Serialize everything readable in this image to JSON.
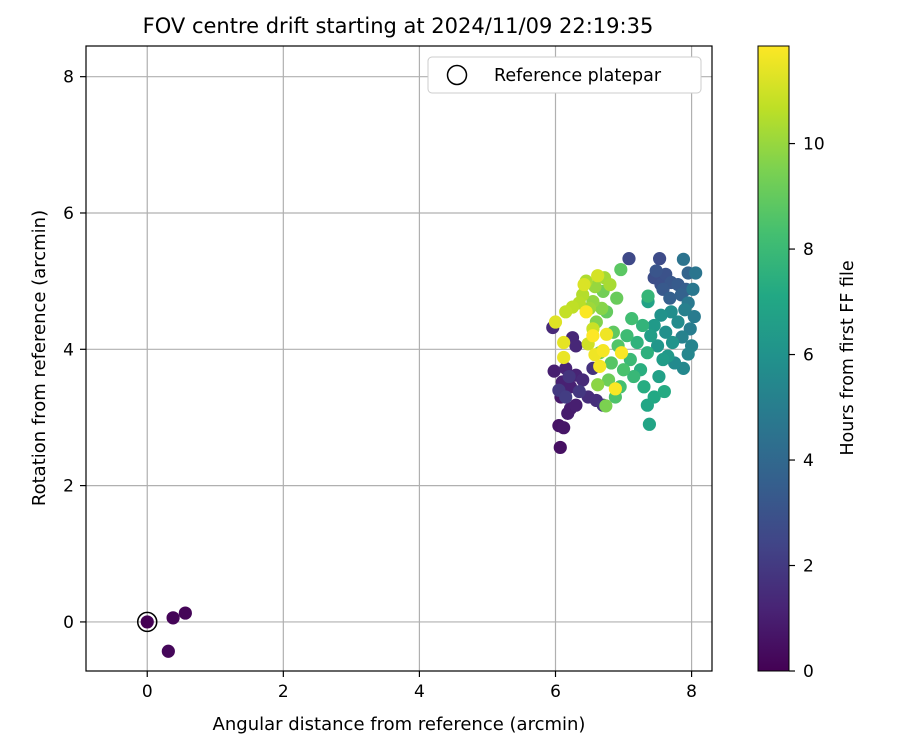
{
  "chart_data": {
    "type": "scatter",
    "title": "FOV centre drift starting at 2024/11/09 22:19:35",
    "xlabel": "Angular distance from reference (arcmin)",
    "ylabel": "Rotation from reference (arcmin)",
    "xlim": [
      -0.9,
      8.3
    ],
    "ylim": [
      -0.72,
      8.45
    ],
    "xticks": [
      0,
      2,
      4,
      6,
      8
    ],
    "yticks": [
      0,
      2,
      4,
      6,
      8
    ],
    "grid": true,
    "legend": {
      "placement": "top-right",
      "entries": [
        "Reference platepar"
      ]
    },
    "reference_point": {
      "x": 0.0,
      "y": 0.0,
      "label": "Reference platepar"
    },
    "colorbar": {
      "label": "Hours from first FF file",
      "colormap": "viridis",
      "range": [
        0,
        11.85
      ],
      "ticks": [
        0,
        2,
        4,
        6,
        8,
        10
      ]
    },
    "points": [
      {
        "x": 0.0,
        "y": 0.0,
        "h": 0.0
      },
      {
        "x": 0.38,
        "y": 0.06,
        "h": 0.1
      },
      {
        "x": 0.56,
        "y": 0.13,
        "h": 0.15
      },
      {
        "x": 0.31,
        "y": -0.43,
        "h": 0.2
      },
      {
        "x": 6.07,
        "y": 2.56,
        "h": 0.5
      },
      {
        "x": 6.05,
        "y": 2.88,
        "h": 0.6
      },
      {
        "x": 6.12,
        "y": 2.85,
        "h": 0.7
      },
      {
        "x": 6.08,
        "y": 3.3,
        "h": 0.8
      },
      {
        "x": 6.18,
        "y": 3.06,
        "h": 0.9
      },
      {
        "x": 6.22,
        "y": 3.13,
        "h": 0.9
      },
      {
        "x": 6.3,
        "y": 3.18,
        "h": 1.0
      },
      {
        "x": 5.98,
        "y": 3.68,
        "h": 1.0
      },
      {
        "x": 6.1,
        "y": 3.52,
        "h": 1.1
      },
      {
        "x": 6.22,
        "y": 3.45,
        "h": 1.1
      },
      {
        "x": 6.3,
        "y": 3.62,
        "h": 1.2
      },
      {
        "x": 6.15,
        "y": 3.72,
        "h": 1.2
      },
      {
        "x": 6.25,
        "y": 4.17,
        "h": 1.3
      },
      {
        "x": 6.3,
        "y": 4.05,
        "h": 1.3
      },
      {
        "x": 5.96,
        "y": 4.32,
        "h": 1.4
      },
      {
        "x": 6.4,
        "y": 3.55,
        "h": 1.4
      },
      {
        "x": 6.48,
        "y": 3.3,
        "h": 1.5
      },
      {
        "x": 6.6,
        "y": 3.25,
        "h": 1.6
      },
      {
        "x": 6.7,
        "y": 3.18,
        "h": 1.7
      },
      {
        "x": 6.55,
        "y": 3.72,
        "h": 1.7
      },
      {
        "x": 6.2,
        "y": 3.6,
        "h": 1.8
      },
      {
        "x": 6.35,
        "y": 3.38,
        "h": 1.9
      },
      {
        "x": 6.05,
        "y": 3.4,
        "h": 2.0
      },
      {
        "x": 6.15,
        "y": 3.3,
        "h": 2.1
      },
      {
        "x": 7.08,
        "y": 5.33,
        "h": 2.6
      },
      {
        "x": 7.53,
        "y": 5.33,
        "h": 2.7
      },
      {
        "x": 7.45,
        "y": 5.05,
        "h": 2.8
      },
      {
        "x": 7.55,
        "y": 4.95,
        "h": 2.9
      },
      {
        "x": 7.62,
        "y": 5.1,
        "h": 3.0
      },
      {
        "x": 7.48,
        "y": 5.15,
        "h": 3.1
      },
      {
        "x": 7.7,
        "y": 4.98,
        "h": 3.2
      },
      {
        "x": 7.58,
        "y": 4.88,
        "h": 3.3
      },
      {
        "x": 7.8,
        "y": 4.95,
        "h": 3.4
      },
      {
        "x": 7.92,
        "y": 4.88,
        "h": 3.5
      },
      {
        "x": 7.68,
        "y": 4.75,
        "h": 3.6
      },
      {
        "x": 7.85,
        "y": 4.8,
        "h": 3.7
      },
      {
        "x": 7.95,
        "y": 5.12,
        "h": 3.8
      },
      {
        "x": 7.88,
        "y": 5.32,
        "h": 4.5
      },
      {
        "x": 8.06,
        "y": 5.12,
        "h": 4.6
      },
      {
        "x": 8.02,
        "y": 4.88,
        "h": 4.7
      },
      {
        "x": 7.95,
        "y": 4.68,
        "h": 4.8
      },
      {
        "x": 8.04,
        "y": 4.48,
        "h": 4.9
      },
      {
        "x": 7.98,
        "y": 4.3,
        "h": 5.0
      },
      {
        "x": 7.9,
        "y": 4.58,
        "h": 5.1
      },
      {
        "x": 7.86,
        "y": 4.18,
        "h": 5.2
      },
      {
        "x": 8.0,
        "y": 4.05,
        "h": 5.3
      },
      {
        "x": 7.95,
        "y": 3.93,
        "h": 5.4
      },
      {
        "x": 7.88,
        "y": 3.72,
        "h": 5.5
      },
      {
        "x": 7.75,
        "y": 3.8,
        "h": 5.6
      },
      {
        "x": 7.8,
        "y": 4.4,
        "h": 5.7
      },
      {
        "x": 7.7,
        "y": 4.55,
        "h": 5.8
      },
      {
        "x": 7.62,
        "y": 4.25,
        "h": 5.9
      },
      {
        "x": 7.55,
        "y": 4.5,
        "h": 6.0
      },
      {
        "x": 7.72,
        "y": 4.1,
        "h": 6.1
      },
      {
        "x": 7.5,
        "y": 4.05,
        "h": 6.2
      },
      {
        "x": 7.65,
        "y": 3.9,
        "h": 6.3
      },
      {
        "x": 7.45,
        "y": 4.35,
        "h": 6.4
      },
      {
        "x": 7.58,
        "y": 3.85,
        "h": 6.5
      },
      {
        "x": 7.4,
        "y": 4.2,
        "h": 6.6
      },
      {
        "x": 7.52,
        "y": 3.6,
        "h": 6.7
      },
      {
        "x": 7.36,
        "y": 4.7,
        "h": 6.8
      },
      {
        "x": 7.38,
        "y": 2.9,
        "h": 6.9
      },
      {
        "x": 7.35,
        "y": 3.18,
        "h": 7.0
      },
      {
        "x": 7.45,
        "y": 3.3,
        "h": 7.1
      },
      {
        "x": 7.6,
        "y": 3.38,
        "h": 7.2
      },
      {
        "x": 7.3,
        "y": 3.45,
        "h": 7.3
      },
      {
        "x": 7.25,
        "y": 3.7,
        "h": 7.4
      },
      {
        "x": 7.35,
        "y": 3.95,
        "h": 7.5
      },
      {
        "x": 7.2,
        "y": 4.1,
        "h": 7.6
      },
      {
        "x": 7.28,
        "y": 4.35,
        "h": 7.7
      },
      {
        "x": 7.36,
        "y": 4.78,
        "h": 7.8
      },
      {
        "x": 7.15,
        "y": 3.6,
        "h": 7.9
      },
      {
        "x": 7.1,
        "y": 3.85,
        "h": 8.0
      },
      {
        "x": 7.05,
        "y": 4.2,
        "h": 8.1
      },
      {
        "x": 7.12,
        "y": 4.45,
        "h": 8.2
      },
      {
        "x": 6.95,
        "y": 3.45,
        "h": 8.3
      },
      {
        "x": 7.0,
        "y": 3.7,
        "h": 8.4
      },
      {
        "x": 6.88,
        "y": 3.3,
        "h": 8.5
      },
      {
        "x": 6.92,
        "y": 4.05,
        "h": 8.6
      },
      {
        "x": 6.82,
        "y": 3.8,
        "h": 8.7
      },
      {
        "x": 6.96,
        "y": 5.17,
        "h": 8.8
      },
      {
        "x": 6.85,
        "y": 4.25,
        "h": 8.9
      },
      {
        "x": 6.75,
        "y": 4.55,
        "h": 9.0
      },
      {
        "x": 6.9,
        "y": 4.75,
        "h": 9.1
      },
      {
        "x": 6.78,
        "y": 3.55,
        "h": 9.2
      },
      {
        "x": 6.7,
        "y": 4.85,
        "h": 9.3
      },
      {
        "x": 6.65,
        "y": 3.95,
        "h": 9.4
      },
      {
        "x": 6.74,
        "y": 3.17,
        "h": 9.5
      },
      {
        "x": 6.6,
        "y": 4.4,
        "h": 9.6
      },
      {
        "x": 6.68,
        "y": 4.6,
        "h": 9.7
      },
      {
        "x": 6.62,
        "y": 3.48,
        "h": 9.8
      },
      {
        "x": 6.55,
        "y": 4.7,
        "h": 9.9
      },
      {
        "x": 6.58,
        "y": 4.92,
        "h": 10.0
      },
      {
        "x": 6.5,
        "y": 4.6,
        "h": 10.1
      },
      {
        "x": 6.72,
        "y": 5.05,
        "h": 10.2
      },
      {
        "x": 6.8,
        "y": 4.95,
        "h": 10.3
      },
      {
        "x": 6.45,
        "y": 5.0,
        "h": 10.4
      },
      {
        "x": 6.4,
        "y": 4.8,
        "h": 10.5
      },
      {
        "x": 6.35,
        "y": 4.68,
        "h": 10.6
      },
      {
        "x": 6.25,
        "y": 4.62,
        "h": 10.7
      },
      {
        "x": 6.15,
        "y": 4.55,
        "h": 10.8
      },
      {
        "x": 6.55,
        "y": 4.3,
        "h": 10.9
      },
      {
        "x": 6.48,
        "y": 4.08,
        "h": 11.0
      },
      {
        "x": 6.62,
        "y": 5.08,
        "h": 11.1
      },
      {
        "x": 6.42,
        "y": 4.95,
        "h": 11.2
      },
      {
        "x": 6.0,
        "y": 4.4,
        "h": 11.3
      },
      {
        "x": 6.12,
        "y": 4.1,
        "h": 11.4
      },
      {
        "x": 6.12,
        "y": 3.88,
        "h": 11.5
      },
      {
        "x": 6.58,
        "y": 3.92,
        "h": 11.6
      },
      {
        "x": 6.75,
        "y": 4.22,
        "h": 11.6
      },
      {
        "x": 6.65,
        "y": 3.75,
        "h": 11.7
      },
      {
        "x": 6.7,
        "y": 3.98,
        "h": 11.7
      },
      {
        "x": 6.97,
        "y": 3.95,
        "h": 11.8
      },
      {
        "x": 6.88,
        "y": 3.42,
        "h": 11.8
      },
      {
        "x": 6.55,
        "y": 4.2,
        "h": 11.85
      },
      {
        "x": 6.45,
        "y": 4.55,
        "h": 11.8
      }
    ]
  }
}
